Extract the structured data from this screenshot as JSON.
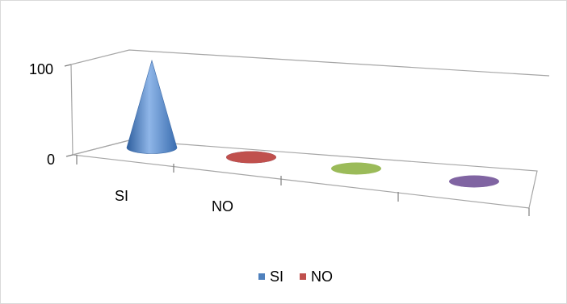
{
  "chart_data": {
    "type": "bar",
    "style": "3d-cone",
    "categories": [
      "SI",
      "NO",
      "",
      ""
    ],
    "series": [
      {
        "name": "SI",
        "color": "#4f81bd",
        "values": [
          100,
          0,
          null,
          null
        ]
      },
      {
        "name": "NO",
        "color": "#c0504d",
        "values": [
          null,
          0,
          null,
          null
        ]
      },
      {
        "name": "",
        "color": "#9bbb59",
        "values": [
          null,
          null,
          0,
          null
        ]
      },
      {
        "name": "",
        "color": "#8064a2",
        "values": [
          null,
          null,
          null,
          0
        ]
      }
    ],
    "y_ticks": [
      "100",
      "0"
    ],
    "ylim": [
      0,
      100
    ],
    "legend": {
      "placement": "bottom",
      "entries": [
        {
          "label": "SI",
          "color": "#4f81bd"
        },
        {
          "label": "NO",
          "color": "#c0504d"
        }
      ]
    },
    "grid": false
  }
}
